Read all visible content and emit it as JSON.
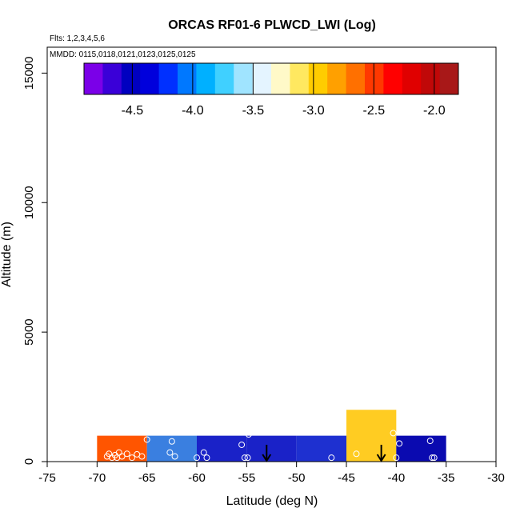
{
  "chart_data": {
    "type": "heatmap",
    "title": "ORCAS RF01-6 PLWCD_LWI (Log)",
    "flights_note": "Flts: 1,2,3,4,5,6",
    "dates_note": "MMDD: 0115,0118,0121,0123,0125,0125",
    "xlabel": "Latitude (deg N)",
    "ylabel": "Altitude (m)",
    "xlim": [
      -75,
      -30
    ],
    "ylim": [
      0,
      16000
    ],
    "xticks": [
      -75,
      -70,
      -65,
      -60,
      -55,
      -50,
      -45,
      -40,
      -35,
      -30
    ],
    "yticks": [
      0,
      5000,
      10000,
      15000
    ],
    "colorbar": {
      "range": [
        -4.9,
        -1.8
      ],
      "ticks": [
        -4.5,
        -4.0,
        -3.5,
        -3.0,
        -2.5,
        -2.0
      ],
      "tick_labels": [
        "-4.5",
        "-4.0",
        "-3.5",
        "-3.0",
        "-2.5",
        "-2.0"
      ],
      "colors": [
        "#7b00e8",
        "#3a00d8",
        "#0000c0",
        "#0000dc",
        "#0030ff",
        "#0078ff",
        "#00b0ff",
        "#40d0ff",
        "#a0e4ff",
        "#e4f4ff",
        "#fff9c8",
        "#ffe860",
        "#ffcc00",
        "#ffa000",
        "#ff7000",
        "#ff3800",
        "#ff0000",
        "#e00000",
        "#c00808",
        "#a81818"
      ]
    },
    "cells": [
      {
        "lat_min": -70,
        "lat_max": -65,
        "alt_min": 0,
        "alt_max": 1000,
        "value": -2.28,
        "color": "#ff5500"
      },
      {
        "lat_min": -65,
        "lat_max": -60,
        "alt_min": 0,
        "alt_max": 1000,
        "value": -4.1,
        "color": "#3a7fe0"
      },
      {
        "lat_min": -60,
        "lat_max": -55,
        "alt_min": 0,
        "alt_max": 1000,
        "value": -4.45,
        "color": "#1a22c8"
      },
      {
        "lat_min": -55,
        "lat_max": -50,
        "alt_min": 0,
        "alt_max": 1000,
        "value": -4.45,
        "color": "#1a22c8"
      },
      {
        "lat_min": -50,
        "lat_max": -45,
        "alt_min": 0,
        "alt_max": 1000,
        "value": -4.4,
        "color": "#1e30d0"
      },
      {
        "lat_min": -45,
        "lat_max": -40,
        "alt_min": 0,
        "alt_max": 2000,
        "value": -2.72,
        "color": "#ffcc22"
      },
      {
        "lat_min": -40,
        "lat_max": -35,
        "alt_min": 0,
        "alt_max": 1000,
        "value": -4.55,
        "color": "#0a0ab0"
      }
    ],
    "points": [
      {
        "lat": -69.0,
        "alt": 200
      },
      {
        "lat": -68.8,
        "alt": 300
      },
      {
        "lat": -68.5,
        "alt": 150
      },
      {
        "lat": -68.2,
        "alt": 250
      },
      {
        "lat": -68.0,
        "alt": 150
      },
      {
        "lat": -67.8,
        "alt": 350
      },
      {
        "lat": -67.5,
        "alt": 200
      },
      {
        "lat": -67.0,
        "alt": 300
      },
      {
        "lat": -66.5,
        "alt": 150
      },
      {
        "lat": -66.0,
        "alt": 280
      },
      {
        "lat": -65.5,
        "alt": 200
      },
      {
        "lat": -65.0,
        "alt": 850
      },
      {
        "lat": -62.5,
        "alt": 780
      },
      {
        "lat": -62.7,
        "alt": 350
      },
      {
        "lat": -62.2,
        "alt": 200
      },
      {
        "lat": -60.0,
        "alt": 150
      },
      {
        "lat": -59.3,
        "alt": 350
      },
      {
        "lat": -59.0,
        "alt": 150
      },
      {
        "lat": -55.5,
        "alt": 650
      },
      {
        "lat": -55.2,
        "alt": 150
      },
      {
        "lat": -54.9,
        "alt": 150
      },
      {
        "lat": -54.8,
        "alt": 1050
      },
      {
        "lat": -46.5,
        "alt": 150
      },
      {
        "lat": -44.0,
        "alt": 300
      },
      {
        "lat": -40.3,
        "alt": 1100
      },
      {
        "lat": -40.0,
        "alt": 150
      },
      {
        "lat": -39.7,
        "alt": 700
      },
      {
        "lat": -36.6,
        "alt": 800
      },
      {
        "lat": -36.4,
        "alt": 150
      },
      {
        "lat": -36.2,
        "alt": 150
      }
    ],
    "arrows": [
      {
        "lat": -53.0,
        "alt_top": 650,
        "alt_bottom": 0
      },
      {
        "lat": -41.5,
        "alt_top": 650,
        "alt_bottom": 0
      }
    ]
  }
}
